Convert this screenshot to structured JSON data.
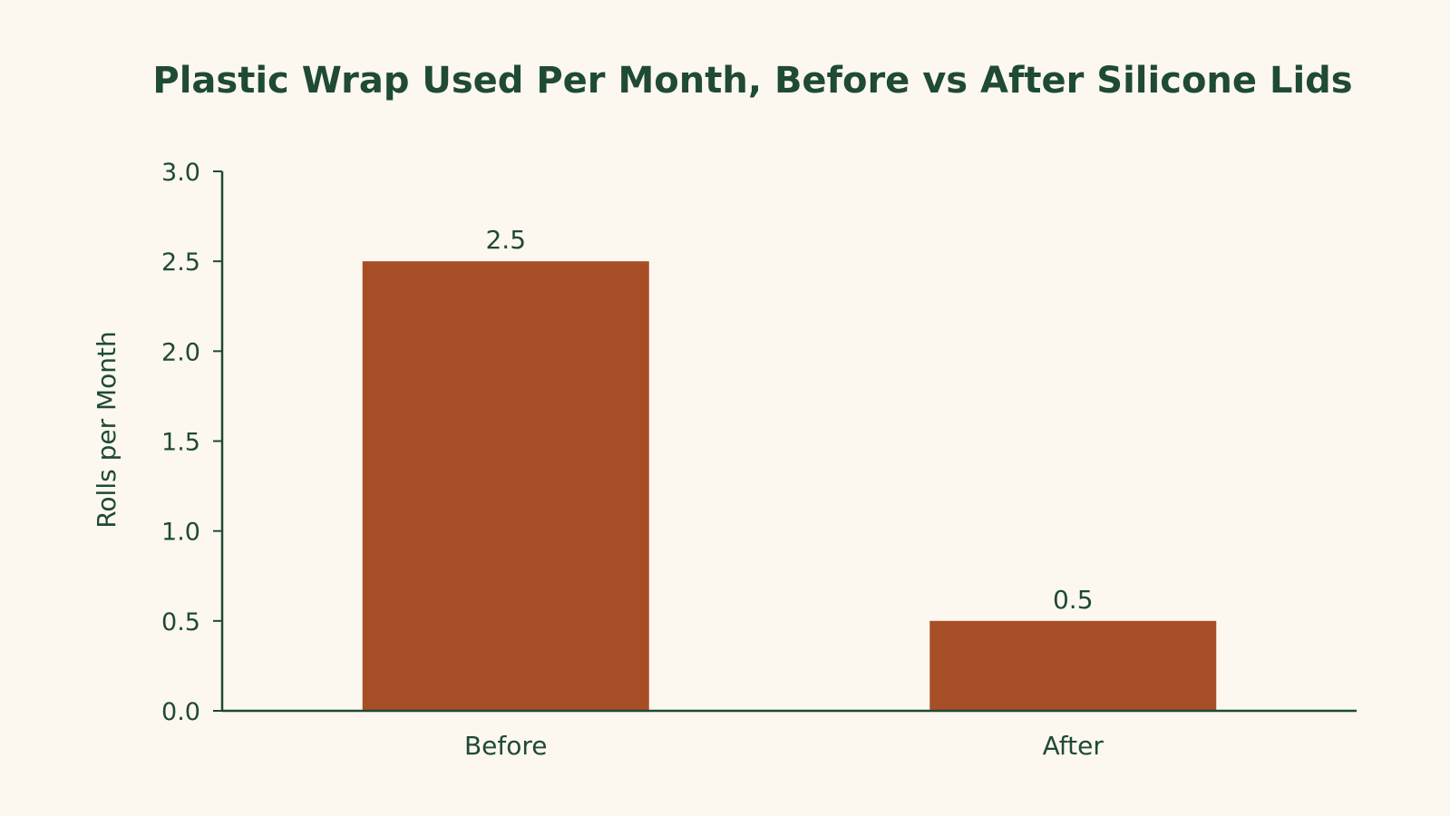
{
  "chart_data": {
    "type": "bar",
    "title": "Plastic Wrap Used Per Month, Before vs After Silicone Lids",
    "xlabel": "",
    "ylabel": "Rolls per Month",
    "categories": [
      "Before",
      "After"
    ],
    "values": [
      2.5,
      0.5
    ],
    "value_labels": [
      "2.5",
      "0.5"
    ],
    "ylim": [
      0,
      3.0
    ],
    "yticks": [
      0.0,
      0.5,
      1.0,
      1.5,
      2.0,
      2.5,
      3.0
    ],
    "ytick_labels": [
      "0.0",
      "0.5",
      "1.0",
      "1.5",
      "2.0",
      "2.5",
      "3.0"
    ],
    "grid": false,
    "legend": "none",
    "colors": {
      "bar": "#a84e26",
      "text": "#1f4a33",
      "axis": "#1f4a33",
      "background": "#fcf8ef"
    }
  }
}
